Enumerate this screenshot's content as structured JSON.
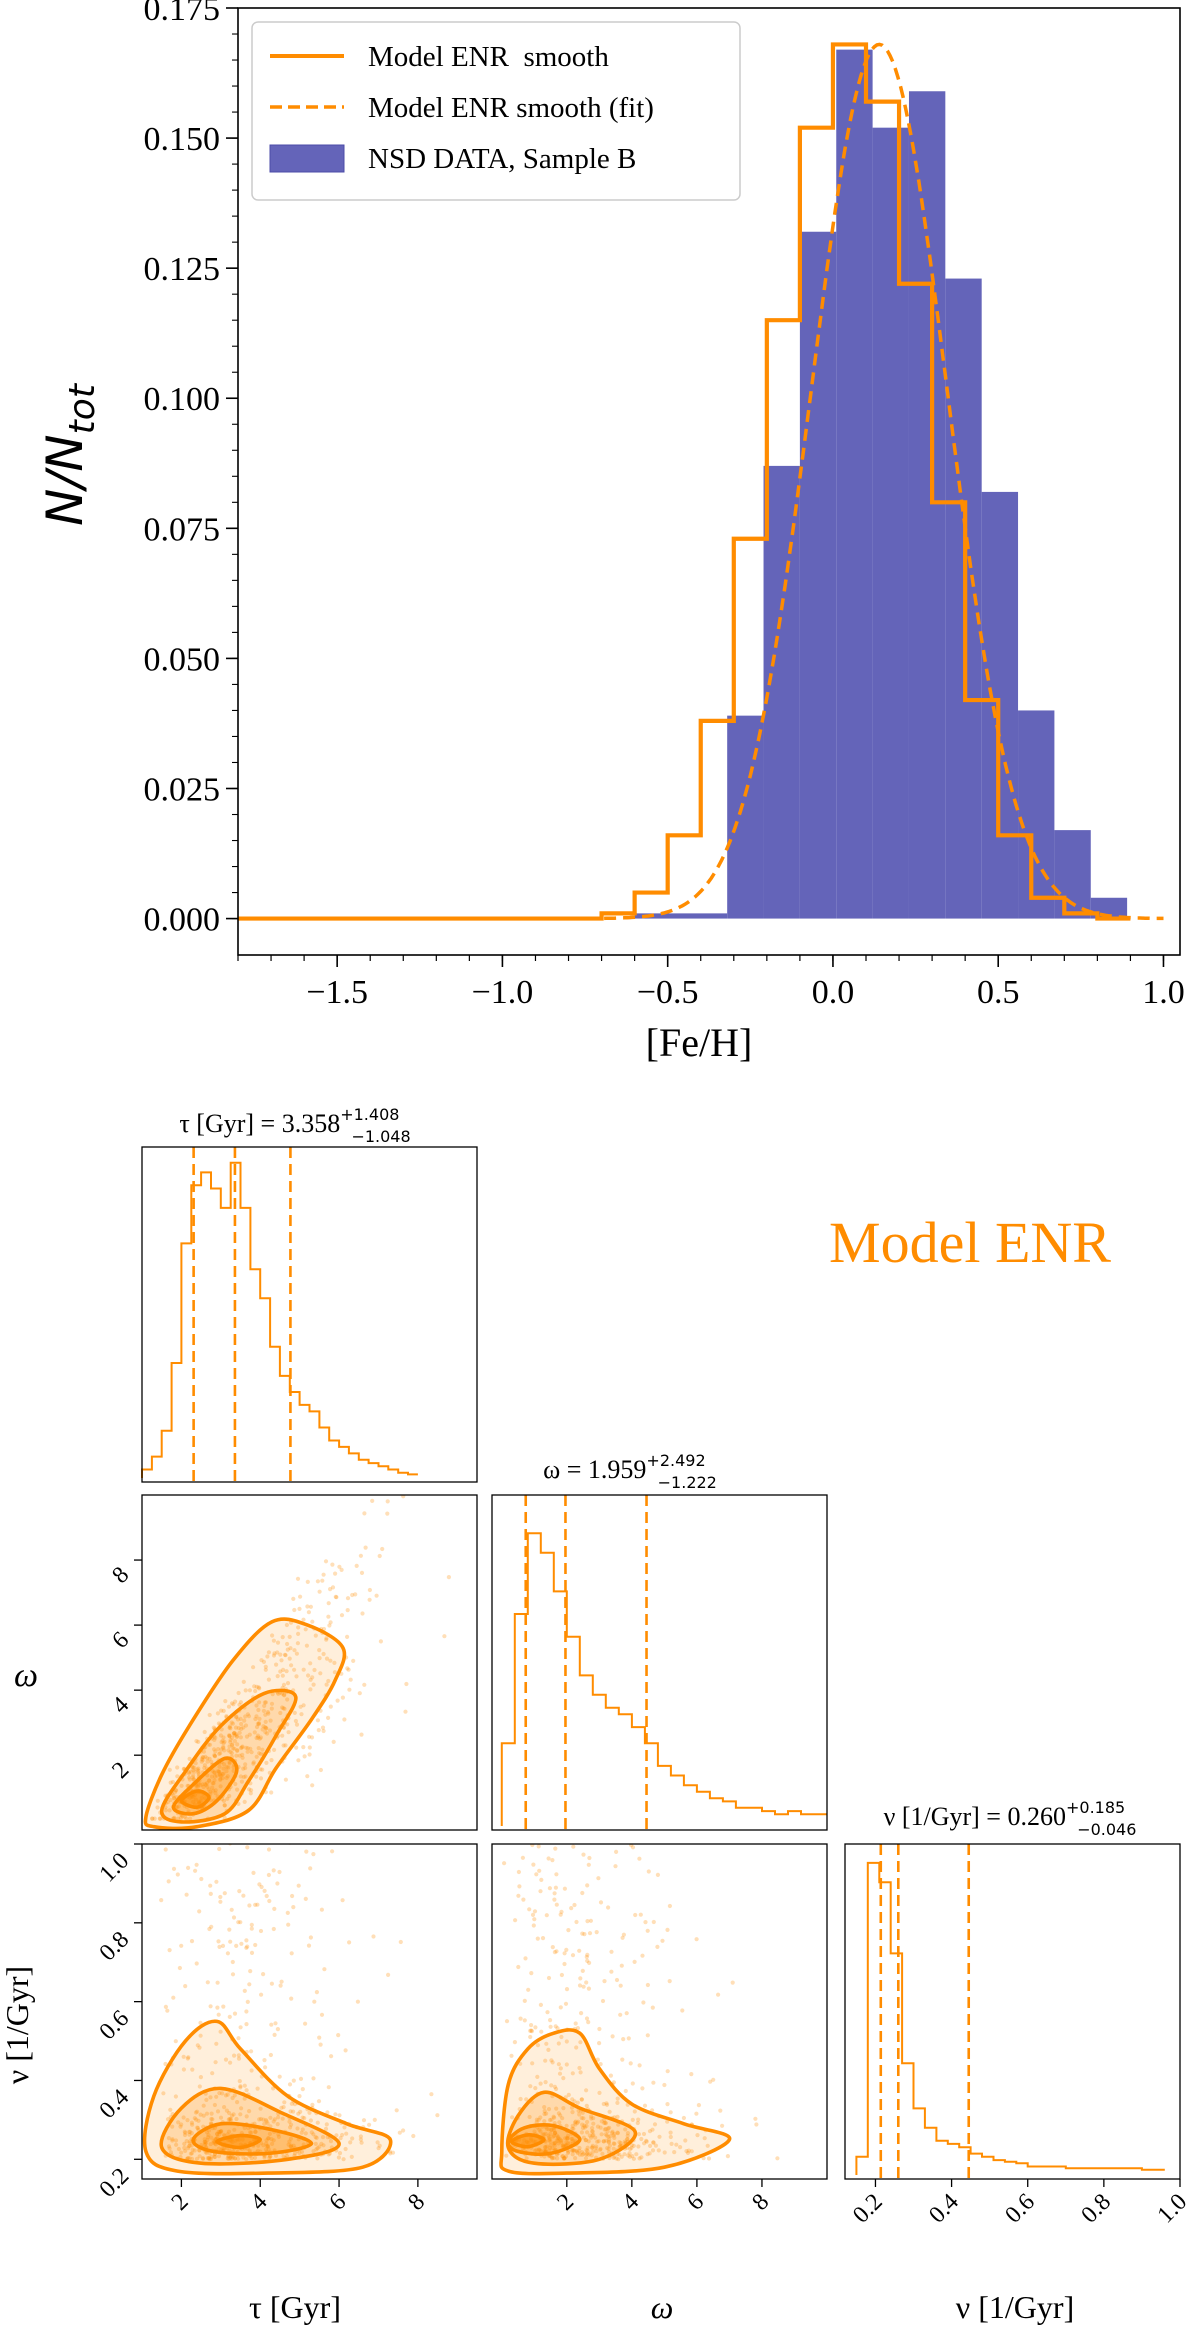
{
  "colors": {
    "model": "#ff8c00",
    "data_fill": "#6464b9",
    "data_edge": "#4b4ba8",
    "axes": "#000000"
  },
  "legend": {
    "entries": [
      {
        "label": "Model ENR  smooth",
        "style": "solid"
      },
      {
        "label": "Model ENR smooth (fit)",
        "style": "dashed"
      },
      {
        "label": "NSD DATA, Sample B",
        "style": "patch"
      }
    ]
  },
  "corner": {
    "model_label": "Model ENR",
    "tau_title": "τ [Gyr] = 3.358",
    "tau_title_sup": "+1.408",
    "tau_title_sub": "−1.048",
    "omega_title": "ω = 1.959",
    "omega_title_sup": "+2.492",
    "omega_title_sub": "−1.222",
    "nu_title": "ν [1/Gyr] = 0.260",
    "nu_title_sup": "+0.185",
    "nu_title_sub": "−0.046",
    "xlabel_tau": "τ [Gyr]",
    "xlabel_omega": "ω",
    "xlabel_nu": "ν [1/Gyr]",
    "ylabel_omega": "ω",
    "ylabel_nu": "ν [1/Gyr]"
  },
  "chart_data": [
    {
      "type": "bar",
      "title": "",
      "xlabel": "[Fe/H]",
      "ylabel": "N/N",
      "ylabel_sub": "tot",
      "xlim": [
        -1.8,
        1.05
      ],
      "ylim": [
        -0.007,
        0.175
      ],
      "xticks": [
        -1.5,
        -1.0,
        -0.5,
        0.0,
        0.5,
        1.0
      ],
      "xtick_labels": [
        "−1.5",
        "−1.0",
        "−0.5",
        "0.0",
        "0.5",
        "1.0"
      ],
      "yticks": [
        0.0,
        0.025,
        0.05,
        0.075,
        0.1,
        0.125,
        0.15,
        0.175
      ],
      "ytick_labels": [
        "0.000",
        "0.025",
        "0.050",
        "0.075",
        "0.100",
        "0.125",
        "0.150",
        "0.175"
      ],
      "legend_position": "upper-left",
      "series": [
        {
          "name": "NSD DATA, Sample B",
          "kind": "histogram",
          "bin_edges": [
            -0.6,
            -0.32,
            -0.21,
            -0.1,
            0.01,
            0.12,
            0.23,
            0.34,
            0.45,
            0.56,
            0.67,
            0.78,
            0.89
          ],
          "values": [
            0.001,
            0.039,
            0.087,
            0.132,
            0.167,
            0.152,
            0.159,
            0.123,
            0.082,
            0.04,
            0.017,
            0.004
          ]
        },
        {
          "name": "Model ENR  smooth",
          "kind": "step",
          "bin_edges": [
            -1.8,
            -0.7,
            -0.6,
            -0.5,
            -0.4,
            -0.3,
            -0.2,
            -0.1,
            0.0,
            0.1,
            0.2,
            0.3,
            0.4,
            0.5,
            0.6,
            0.7,
            0.8,
            0.9
          ],
          "values": [
            0.0,
            0.001,
            0.005,
            0.016,
            0.038,
            0.073,
            0.115,
            0.152,
            0.168,
            0.157,
            0.122,
            0.08,
            0.042,
            0.016,
            0.004,
            0.001,
            0.0
          ]
        },
        {
          "name": "Model ENR smooth (fit)",
          "kind": "gaussian",
          "mean": 0.14,
          "sigma": 0.205,
          "amplitude": 0.168,
          "x_range": [
            -0.75,
            1.0
          ]
        }
      ]
    },
    {
      "type": "histogram",
      "title": "τ [Gyr] = 3.358 (+1.408 / −1.048)",
      "xlim": [
        1,
        9.5
      ],
      "bin_edges": [
        1.0,
        1.25,
        1.5,
        1.75,
        2.0,
        2.25,
        2.5,
        2.75,
        3.0,
        3.25,
        3.5,
        3.75,
        4.0,
        4.25,
        4.5,
        4.75,
        5.0,
        5.25,
        5.5,
        5.75,
        6.0,
        6.25,
        6.5,
        6.75,
        7.0,
        7.25,
        7.5,
        7.75,
        8.0
      ],
      "values": [
        0.02,
        0.06,
        0.14,
        0.35,
        0.72,
        0.9,
        0.94,
        0.89,
        0.83,
        0.97,
        0.83,
        0.64,
        0.55,
        0.4,
        0.31,
        0.26,
        0.22,
        0.2,
        0.15,
        0.11,
        0.09,
        0.07,
        0.05,
        0.04,
        0.03,
        0.02,
        0.01,
        0.005
      ],
      "quantiles": [
        2.31,
        3.358,
        4.766
      ]
    },
    {
      "type": "histogram",
      "title": "ω = 1.959 (+2.492 / −1.222)",
      "xlim": [
        -0.3,
        10.0
      ],
      "bin_edges": [
        0.0,
        0.4,
        0.8,
        1.2,
        1.6,
        2.0,
        2.4,
        2.8,
        3.2,
        3.6,
        4.0,
        4.4,
        4.8,
        5.2,
        5.6,
        6.0,
        6.4,
        6.8,
        7.2,
        7.6,
        8.0,
        8.4,
        8.8,
        9.2,
        9.6,
        10.0
      ],
      "values": [
        0.25,
        0.65,
        0.9,
        0.84,
        0.72,
        0.58,
        0.46,
        0.4,
        0.36,
        0.34,
        0.3,
        0.25,
        0.18,
        0.15,
        0.12,
        0.1,
        0.08,
        0.07,
        0.05,
        0.05,
        0.04,
        0.03,
        0.04,
        0.03,
        0.03
      ],
      "quantiles": [
        0.737,
        1.959,
        4.451
      ]
    },
    {
      "type": "histogram",
      "title": "ν [1/Gyr] = 0.260 (+0.185 / −0.046)",
      "xlim": [
        0.12,
        1.0
      ],
      "xticks": [
        0.2,
        0.4,
        0.6,
        0.8,
        1.0
      ],
      "xtick_labels": [
        "0.2",
        "0.4",
        "0.6",
        "0.8",
        "1.0"
      ],
      "bin_edges": [
        0.15,
        0.18,
        0.21,
        0.24,
        0.27,
        0.3,
        0.33,
        0.36,
        0.39,
        0.42,
        0.45,
        0.48,
        0.51,
        0.54,
        0.57,
        0.6,
        0.7,
        0.8,
        0.9,
        0.96
      ],
      "values": [
        0.05,
        0.96,
        0.9,
        0.68,
        0.34,
        0.2,
        0.14,
        0.1,
        0.09,
        0.08,
        0.06,
        0.05,
        0.04,
        0.035,
        0.03,
        0.02,
        0.015,
        0.015,
        0.01
      ],
      "quantiles": [
        0.214,
        0.26,
        0.445
      ]
    },
    {
      "type": "scatter",
      "kind": "2d-density",
      "x": "τ [Gyr]",
      "y": "ω",
      "xlim": [
        1,
        9.5
      ],
      "ylim": [
        -0.3,
        10.0
      ],
      "xticks": [
        2,
        4,
        6,
        8
      ],
      "yticks": [
        2,
        4,
        6,
        8
      ],
      "density_peak": [
        2.3,
        0.8
      ],
      "contours": [
        [
          [
            1.1,
            0.1
          ],
          [
            1.5,
            1.4
          ],
          [
            2.2,
            2.9
          ],
          [
            3.3,
            4.9
          ],
          [
            4.3,
            6.1
          ],
          [
            5.2,
            6.0
          ],
          [
            6.1,
            5.3
          ],
          [
            5.9,
            4.3
          ],
          [
            5.3,
            3.1
          ],
          [
            4.4,
            1.6
          ],
          [
            3.7,
            0.3
          ],
          [
            2.4,
            -0.2
          ],
          [
            1.3,
            -0.2
          ]
        ],
        [
          [
            1.5,
            0.3
          ],
          [
            2.1,
            1.5
          ],
          [
            3.0,
            2.9
          ],
          [
            4.1,
            3.9
          ],
          [
            4.9,
            3.8
          ],
          [
            4.4,
            2.6
          ],
          [
            3.7,
            1.2
          ],
          [
            3.1,
            0.2
          ],
          [
            2.0,
            -0.05
          ]
        ],
        [
          [
            1.8,
            0.4
          ],
          [
            2.3,
            1.1
          ],
          [
            3.1,
            1.9
          ],
          [
            3.4,
            1.5
          ],
          [
            2.9,
            0.6
          ],
          [
            2.3,
            0.2
          ]
        ],
        [
          [
            2.0,
            0.6
          ],
          [
            2.4,
            0.9
          ],
          [
            2.7,
            0.7
          ],
          [
            2.4,
            0.4
          ]
        ]
      ]
    },
    {
      "type": "scatter",
      "kind": "2d-density",
      "x": "τ [Gyr]",
      "y": "ν [1/Gyr]",
      "xlim": [
        1,
        9.5
      ],
      "ylim": [
        0.15,
        1.0
      ],
      "xticks": [
        2,
        4,
        6,
        8
      ],
      "yticks": [
        0.2,
        0.4,
        0.6,
        0.8,
        1.0
      ],
      "ytick_labels": [
        "0.2",
        "0.4",
        "0.6",
        "0.8",
        "1.0"
      ],
      "density_peak": [
        3.4,
        0.245
      ],
      "contours": [
        [
          [
            1.1,
            0.22
          ],
          [
            1.3,
            0.36
          ],
          [
            2.1,
            0.5
          ],
          [
            2.9,
            0.55
          ],
          [
            3.5,
            0.48
          ],
          [
            4.7,
            0.36
          ],
          [
            6.2,
            0.29
          ],
          [
            7.3,
            0.25
          ],
          [
            6.6,
            0.18
          ],
          [
            4.2,
            0.165
          ],
          [
            1.9,
            0.17
          ]
        ],
        [
          [
            1.5,
            0.23
          ],
          [
            2.0,
            0.33
          ],
          [
            3.0,
            0.38
          ],
          [
            4.5,
            0.32
          ],
          [
            6.0,
            0.24
          ],
          [
            4.7,
            0.2
          ],
          [
            2.5,
            0.19
          ]
        ],
        [
          [
            2.3,
            0.25
          ],
          [
            3.0,
            0.29
          ],
          [
            4.3,
            0.275
          ],
          [
            5.3,
            0.24
          ],
          [
            4.2,
            0.215
          ],
          [
            2.8,
            0.22
          ]
        ],
        [
          [
            2.9,
            0.245
          ],
          [
            3.5,
            0.26
          ],
          [
            4.0,
            0.25
          ],
          [
            3.5,
            0.23
          ]
        ]
      ]
    },
    {
      "type": "scatter",
      "kind": "2d-density",
      "x": "ω",
      "y": "ν [1/Gyr]",
      "xlim": [
        -0.3,
        10.0
      ],
      "ylim": [
        0.15,
        1.0
      ],
      "xticks": [
        2,
        4,
        6,
        8
      ],
      "density_peak": [
        0.7,
        0.245
      ],
      "contours": [
        [
          [
            0.0,
            0.22
          ],
          [
            0.2,
            0.39
          ],
          [
            0.8,
            0.48
          ],
          [
            1.6,
            0.52
          ],
          [
            2.4,
            0.52
          ],
          [
            3.0,
            0.43
          ],
          [
            4.0,
            0.34
          ],
          [
            5.6,
            0.29
          ],
          [
            7.0,
            0.25
          ],
          [
            5.0,
            0.18
          ],
          [
            2.0,
            0.165
          ],
          [
            0.2,
            0.17
          ]
        ],
        [
          [
            0.2,
            0.23
          ],
          [
            0.5,
            0.31
          ],
          [
            1.3,
            0.37
          ],
          [
            2.4,
            0.33
          ],
          [
            4.1,
            0.27
          ],
          [
            3.0,
            0.2
          ],
          [
            1.0,
            0.19
          ]
        ],
        [
          [
            0.2,
            0.245
          ],
          [
            0.7,
            0.28
          ],
          [
            1.6,
            0.285
          ],
          [
            2.4,
            0.25
          ],
          [
            1.5,
            0.215
          ],
          [
            0.5,
            0.22
          ]
        ],
        [
          [
            0.3,
            0.245
          ],
          [
            0.8,
            0.262
          ],
          [
            1.3,
            0.25
          ],
          [
            0.8,
            0.232
          ]
        ]
      ]
    }
  ]
}
